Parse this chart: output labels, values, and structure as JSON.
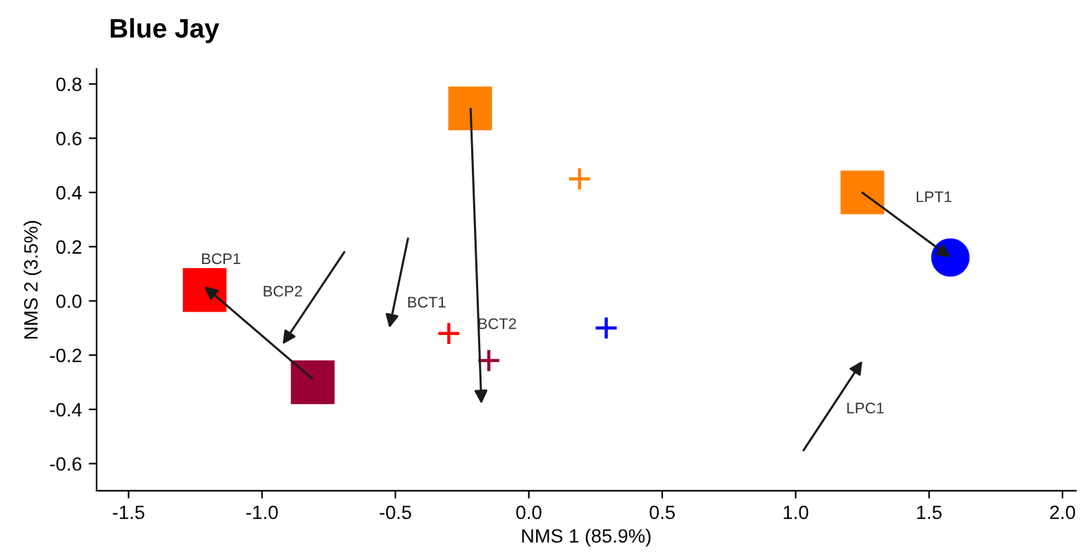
{
  "chart_data": {
    "type": "scatter",
    "title": "Blue Jay",
    "xlabel": "NMS 1 (85.9%)",
    "ylabel": "NMS 2 (3.5%)",
    "xlim": [
      -1.62,
      2.05
    ],
    "xticks": [
      {
        "value": -1.5,
        "label": "-1.5"
      },
      {
        "value": -1.0,
        "label": "-1.0"
      },
      {
        "value": -0.5,
        "label": "-0.5"
      },
      {
        "value": 0.0,
        "label": "0.0"
      },
      {
        "value": 0.5,
        "label": "0.5"
      },
      {
        "value": 1.0,
        "label": "1.0"
      },
      {
        "value": 1.5,
        "label": "1.5"
      },
      {
        "value": 2.0,
        "label": "2.0"
      }
    ],
    "ylim": [
      -0.7,
      0.855
    ],
    "yticks": [
      {
        "value": -0.6,
        "label": "-0.6"
      },
      {
        "value": -0.4,
        "label": "-0.4"
      },
      {
        "value": -0.2,
        "label": "-0.2"
      },
      {
        "value": 0.0,
        "label": "0.0"
      },
      {
        "value": 0.2,
        "label": "0.2"
      },
      {
        "value": 0.4,
        "label": "0.4"
      },
      {
        "value": 0.6,
        "label": "0.6"
      },
      {
        "value": 0.8,
        "label": "0.8"
      }
    ],
    "grid": false,
    "legend": false,
    "series": [
      {
        "marker": "square",
        "color": "#ff0000",
        "x": [
          -1.215
        ],
        "values": [
          0.04
        ]
      },
      {
        "marker": "square",
        "color": "#990033",
        "x": [
          -0.81
        ],
        "values": [
          -0.3
        ]
      },
      {
        "marker": "square",
        "color": "#ff8000",
        "x": [
          -0.22,
          1.25
        ],
        "values": [
          0.71,
          0.4
        ]
      },
      {
        "marker": "circle",
        "color": "#0000ff",
        "x": [
          1.58
        ],
        "values": [
          0.16
        ]
      },
      {
        "marker": "cross",
        "color": "#ff0000",
        "x": [
          -0.3
        ],
        "values": [
          -0.12
        ]
      },
      {
        "marker": "cross",
        "color": "#990033",
        "x": [
          -0.15
        ],
        "values": [
          -0.22
        ]
      },
      {
        "marker": "cross",
        "color": "#ff8000",
        "x": [
          0.19
        ],
        "values": [
          0.45
        ]
      },
      {
        "marker": "cross",
        "color": "#0000ff",
        "x": [
          0.29
        ],
        "values": [
          -0.1
        ]
      }
    ],
    "annotations": [
      "BCP1",
      "BCP2",
      "BCT1",
      "BCT2",
      "LPT1",
      "LPC1"
    ]
  }
}
